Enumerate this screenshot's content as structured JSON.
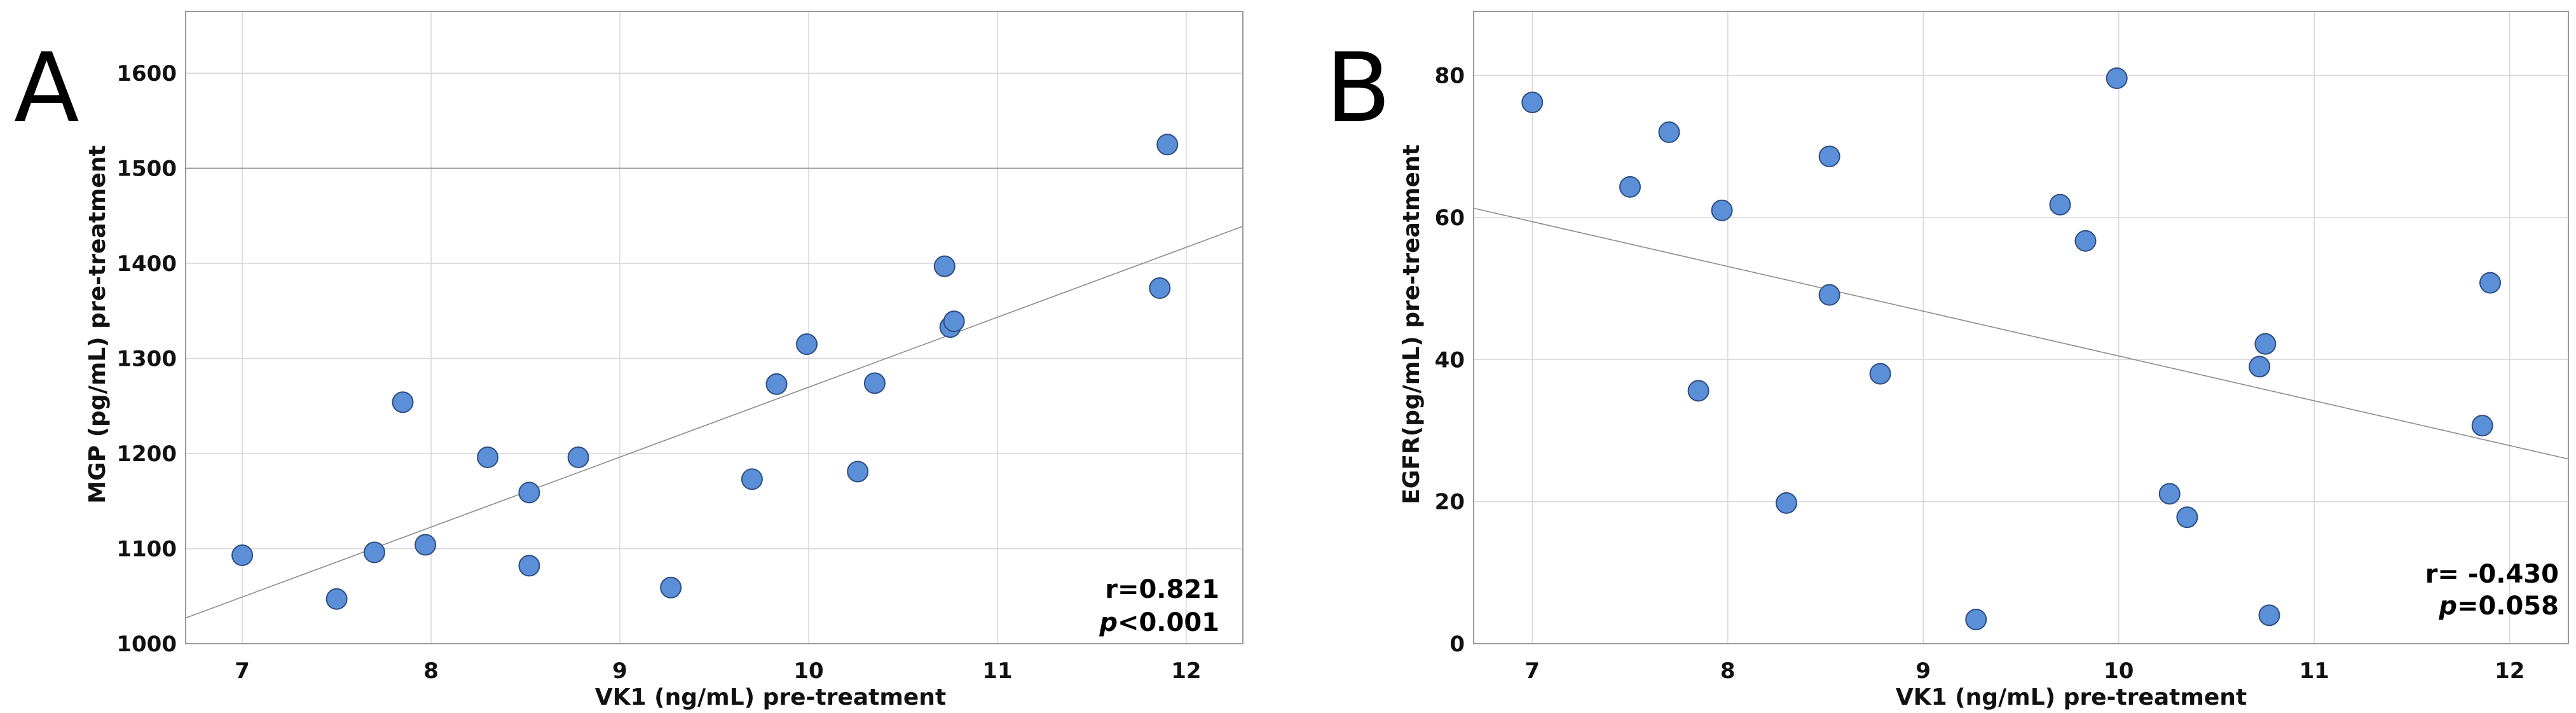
{
  "chart_data": [
    {
      "type": "scatter",
      "panel_label": "A",
      "xlabel": "VK1 (ng/mL) pre-treatment",
      "ylabel": "MGP (pg/mL) pre-treatment",
      "xlim": [
        6.7,
        12.3
      ],
      "ylim": [
        1000,
        1665
      ],
      "x_ticks": [
        7,
        8,
        9,
        10,
        11,
        12
      ],
      "y_ticks": [
        1000,
        1100,
        1200,
        1300,
        1400,
        1500,
        1600
      ],
      "reference_line_y": 1500,
      "grid": true,
      "fit_line": {
        "x": [
          6.7,
          12.3
        ],
        "y": [
          1027,
          1439
        ]
      },
      "points": [
        {
          "x": 7.0,
          "y": 1093
        },
        {
          "x": 7.5,
          "y": 1047
        },
        {
          "x": 7.7,
          "y": 1096
        },
        {
          "x": 7.85,
          "y": 1254
        },
        {
          "x": 7.97,
          "y": 1104
        },
        {
          "x": 8.3,
          "y": 1196
        },
        {
          "x": 8.52,
          "y": 1159
        },
        {
          "x": 8.52,
          "y": 1082
        },
        {
          "x": 8.78,
          "y": 1196
        },
        {
          "x": 9.27,
          "y": 1059
        },
        {
          "x": 9.7,
          "y": 1173
        },
        {
          "x": 9.83,
          "y": 1273
        },
        {
          "x": 9.99,
          "y": 1315
        },
        {
          "x": 10.26,
          "y": 1181
        },
        {
          "x": 10.35,
          "y": 1274
        },
        {
          "x": 10.72,
          "y": 1397
        },
        {
          "x": 10.75,
          "y": 1333
        },
        {
          "x": 10.77,
          "y": 1339
        },
        {
          "x": 11.86,
          "y": 1374
        },
        {
          "x": 11.9,
          "y": 1525
        }
      ],
      "stat_r": "r=0.821",
      "stat_p_symbol": "p",
      "stat_p_value": "<0.001"
    },
    {
      "type": "scatter",
      "panel_label": "B",
      "xlabel": "VK1 (ng/mL) pre-treatment",
      "ylabel": "EGFR(pg/mL) pre-treatment",
      "xlim": [
        6.7,
        12.3
      ],
      "ylim": [
        0,
        89
      ],
      "x_ticks": [
        7,
        8,
        9,
        10,
        11,
        12
      ],
      "y_ticks": [
        0,
        20,
        40,
        60,
        80
      ],
      "grid": true,
      "fit_line": {
        "x": [
          6.7,
          12.3
        ],
        "y": [
          61.3,
          26
        ]
      },
      "points": [
        {
          "x": 7.0,
          "y": 76.2
        },
        {
          "x": 7.5,
          "y": 64.3
        },
        {
          "x": 7.7,
          "y": 72.0
        },
        {
          "x": 7.85,
          "y": 35.6
        },
        {
          "x": 7.97,
          "y": 61.0
        },
        {
          "x": 8.3,
          "y": 19.8
        },
        {
          "x": 8.52,
          "y": 68.6
        },
        {
          "x": 8.52,
          "y": 49.1
        },
        {
          "x": 8.78,
          "y": 38.0
        },
        {
          "x": 9.27,
          "y": 3.4
        },
        {
          "x": 9.7,
          "y": 61.8
        },
        {
          "x": 9.83,
          "y": 56.7
        },
        {
          "x": 9.99,
          "y": 79.6
        },
        {
          "x": 10.26,
          "y": 21.1
        },
        {
          "x": 10.35,
          "y": 17.8
        },
        {
          "x": 10.72,
          "y": 39.0
        },
        {
          "x": 10.75,
          "y": 42.2
        },
        {
          "x": 10.77,
          "y": 4.0
        },
        {
          "x": 11.86,
          "y": 30.7
        },
        {
          "x": 11.9,
          "y": 50.8
        }
      ],
      "stat_r": "r= -0.430",
      "stat_p_symbol": "p",
      "stat_p_value": "=0.058"
    }
  ]
}
